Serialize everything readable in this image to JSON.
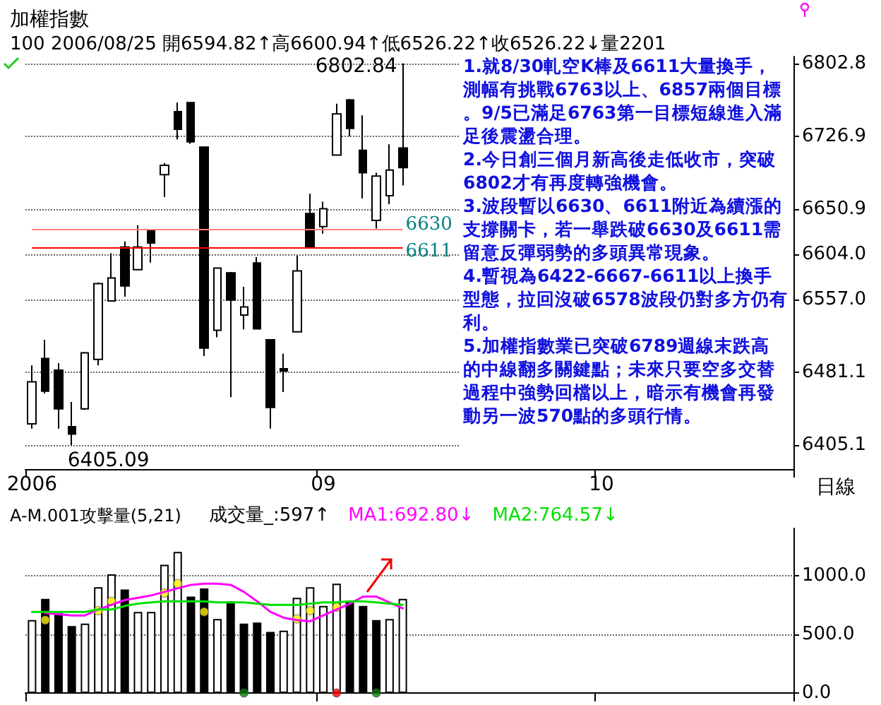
{
  "chart_data": [
    {
      "type": "candlestick",
      "title": "加權指數",
      "subtitle": "100 2006/08/25 開6594.82↑高6600.94↑低6526.22↑收6526.22↓量2201",
      "xlabel": "日線",
      "categories": [
        "2006",
        null,
        null,
        null,
        null,
        null,
        null,
        null,
        null,
        null,
        null,
        null,
        null,
        null,
        null,
        null,
        null,
        null,
        null,
        null,
        null,
        null,
        "09",
        null,
        null,
        null,
        null,
        null,
        null,
        null,
        null,
        null,
        null,
        null,
        null,
        null,
        null,
        null,
        null,
        null,
        null,
        null,
        null,
        "10",
        null,
        null,
        null,
        null,
        null,
        null,
        null,
        null,
        null,
        null,
        null,
        null,
        null,
        null
      ],
      "ohlc": [
        [
          6427.1,
          6488.0,
          6422.2,
          6471.0
        ],
        [
          6495.3,
          6514.8,
          6458.8,
          6461.2
        ],
        [
          6483.1,
          6490.5,
          6422.2,
          6442.7
        ],
        [
          6424.2,
          6450.0,
          6405.09,
          6416.4
        ],
        [
          6442.7,
          6502.0,
          6441.7,
          6501.2
        ],
        [
          6494.3,
          6574.3,
          6488.0,
          6573.3
        ],
        [
          6555.3,
          6605.0,
          6555.3,
          6579.1
        ],
        [
          6611.3,
          6617.2,
          6559.6,
          6570.9
        ],
        [
          6587.9,
          6634.2,
          6587.9,
          6611.3
        ],
        [
          6628.4,
          6628.4,
          6595.2,
          6615.7
        ],
        [
          6686.8,
          6699.0,
          6663.5,
          6696.6
        ],
        [
          6752.6,
          6761.9,
          6723.4,
          6734.1
        ],
        [
          6761.9,
          6761.9,
          6719.0,
          6721.0
        ],
        [
          6715.6,
          6715.6,
          6497.8,
          6506.0
        ],
        [
          6524.6,
          6589.4,
          6517.3,
          6589.4
        ],
        [
          6584.5,
          6585.5,
          6454.9,
          6556.2
        ],
        [
          6540.6,
          6569.9,
          6525.6,
          6548.9
        ],
        [
          6594.82,
          6600.94,
          6526.22,
          6526.22
        ],
        [
          6514.8,
          6514.8,
          6422.2,
          6444.2
        ],
        [
          6484.6,
          6500.2,
          6460.2,
          6482.2
        ],
        [
          6523.1,
          6602.5,
          6523.1,
          6586.5
        ],
        [
          6646.4,
          6666.9,
          6611.3,
          6611.3
        ],
        [
          6632.7,
          6658.6,
          6625.4,
          6651.3
        ],
        [
          6707.3,
          6760.9,
          6707.3,
          6750.2
        ],
        [
          6764.8,
          6765.8,
          6726.8,
          6735.1
        ],
        [
          6712.2,
          6748.7,
          6662.0,
          6688.8
        ],
        [
          6639.1,
          6688.8,
          6630.8,
          6685.4
        ],
        [
          6664.9,
          6718.5,
          6656.1,
          6691.7
        ],
        [
          6714.6,
          6802.84,
          6675.6,
          6694.2
        ],
        null,
        null,
        null,
        null,
        null,
        null,
        null,
        null,
        null,
        null,
        null,
        null,
        null,
        null,
        null,
        null,
        null,
        null,
        null,
        null,
        null,
        null,
        null,
        null,
        null,
        null,
        null,
        null,
        null
      ],
      "ylim": [
        6380,
        6810
      ],
      "yticks": [
        6802.8,
        6726.9,
        6650.9,
        {
          "value": 6604,
          "label": "6604.0"
        },
        {
          "value": 6557,
          "label": "6557.0"
        },
        6481.1,
        6405.1
      ],
      "grid": "y",
      "ref_lines": [
        {
          "axis": "y",
          "value": 6611,
          "label": "6611",
          "color": "#ff0000"
        },
        {
          "axis": "y",
          "value": 6630,
          "label": "6630",
          "color": "#ff8080"
        }
      ],
      "annotations": [
        "6405.09",
        "6802.84",
        "1.就8/30軋空K棒及6611大量換手，測幅有挑戰6763以上、6857兩個目標。9/5已滿足6763第一目標短線進入滿足後震盪合理。",
        "2.今日創三個月新高後走低收市，突破6802才有再度轉強機會。",
        "3.波段暫以6630、6611附近為續漲的支撐關卡，若一舉跌破6630及6611需留意反彈弱勢的多頭異常現象。",
        "4.暫視為6422-6667-6611以上換手型態，拉回沒破6578波段仍對多方仍有利。",
        "5.加權指數業已突破6789週線末跌高的中線翻多關鍵點；未來只要空多交替過程中強勢回檔以上，暗示有機會再發動另一波570點的多頭行情。"
      ]
    },
    {
      "type": "bar",
      "title": "A-M.001攻擊量(5,21)",
      "categories": [
        "2006",
        null,
        null,
        null,
        null,
        null,
        null,
        null,
        null,
        null,
        null,
        null,
        null,
        null,
        null,
        null,
        null,
        null,
        null,
        null,
        null,
        null,
        "09",
        null,
        null,
        null,
        null,
        null,
        null,
        null,
        null,
        null,
        null,
        null,
        null,
        null,
        null,
        null,
        null,
        null,
        null,
        null,
        null,
        "10",
        null,
        null,
        null,
        null,
        null,
        null,
        null,
        null,
        null,
        null,
        null,
        null,
        null,
        null
      ],
      "tick_labels": "y",
      "ylim": [
        0,
        1400
      ],
      "yticks": [
        {
          "value": 0,
          "label": "0.0"
        },
        {
          "value": 500,
          "label": "500.0"
        },
        {
          "value": 1000,
          "label": "1000.0"
        }
      ],
      "grid": "y",
      "legend": "top left",
      "marker": "none",
      "series": [
        {
          "name": "成交量_:597↑",
          "colors": [
            "#ffffff",
            "#000000",
            "#000000",
            "#000000",
            "#ffffff",
            "#ffffff",
            "#ffffff",
            "#000000",
            "#ffffff",
            "#ffffff",
            "#ffffff",
            "#ffffff",
            "#000000",
            "#000000",
            "#ffffff",
            "#000000",
            "#000000",
            "#000000",
            "#000000",
            "#ffffff",
            "#ffffff",
            "#ffffff",
            "#ffffff",
            "#ffffff",
            "#000000",
            "#000000",
            "#000000",
            "#ffffff",
            "#ffffff",
            null,
            null,
            null,
            null,
            null,
            null,
            null,
            null,
            null,
            null,
            null,
            null,
            null,
            null,
            null,
            null,
            null,
            null,
            null,
            null,
            null,
            null,
            null,
            null,
            null,
            null,
            null,
            null,
            null
          ],
          "values": [
            620,
            800,
            680,
            570,
            590,
            900,
            1010,
            880,
            690,
            690,
            1090,
            1200,
            820,
            890,
            630,
            780,
            590,
            600,
            520,
            530,
            810,
            900,
            740,
            930,
            780,
            740,
            620,
            630,
            800,
            null,
            null,
            null,
            null,
            null,
            null,
            null,
            null,
            null,
            null,
            null,
            null,
            null,
            null,
            null,
            null,
            null,
            null,
            null,
            null,
            null,
            null,
            null,
            null,
            null,
            null,
            null,
            null,
            null
          ]
        },
        {
          "type": "line",
          "name": "MA1:692.80↓",
          "color": "#ff00ff",
          "values": [
            null,
            680,
            670,
            660,
            660,
            710,
            750,
            790,
            810,
            830,
            860,
            890,
            920,
            930,
            930,
            920,
            860,
            780,
            690,
            640,
            620,
            610,
            660,
            710,
            760,
            820,
            820,
            770,
            720,
            null,
            null,
            null,
            null,
            null,
            null,
            null,
            null,
            null,
            null,
            null,
            null,
            null,
            null,
            null,
            null,
            null,
            null,
            null,
            null,
            null,
            null,
            null,
            null,
            null,
            null,
            null,
            null,
            null
          ]
        },
        {
          "type": "line",
          "name": "MA2:764.57↓",
          "color": "#00e000",
          "values": [
            690,
            690,
            690,
            690,
            690,
            710,
            710,
            740,
            760,
            770,
            780,
            780,
            780,
            780,
            770,
            770,
            770,
            760,
            750,
            750,
            750,
            760,
            770,
            770,
            780,
            780,
            770,
            760,
            750,
            null,
            null,
            null,
            null,
            null,
            null,
            null,
            null,
            null,
            null,
            null,
            null,
            null,
            null,
            null,
            null,
            null,
            null,
            null,
            null,
            null,
            null,
            null,
            null,
            null,
            null,
            null,
            null,
            null
          ]
        },
        {
          "type": "scatter",
          "marker": "circle",
          "color": "#ffee00",
          "values": [
            null,
            620,
            null,
            null,
            null,
            700,
            780,
            null,
            null,
            null,
            850,
            930,
            null,
            690,
            null,
            null,
            null,
            null,
            null,
            null,
            630,
            700,
            null,
            730,
            null,
            null,
            null,
            null,
            null,
            null,
            null,
            null,
            null,
            null,
            null,
            null,
            null,
            null,
            null,
            null,
            null,
            null,
            null,
            null,
            null,
            null,
            null,
            null,
            null,
            null,
            null,
            null,
            null,
            null,
            null,
            null,
            null,
            null
          ]
        },
        {
          "type": "scatter",
          "marker": "circle",
          "colors": [
            null,
            null,
            null,
            null,
            null,
            null,
            null,
            null,
            null,
            null,
            null,
            null,
            null,
            null,
            null,
            null,
            "#008000",
            null,
            null,
            null,
            null,
            null,
            null,
            "#ff0000",
            null,
            null,
            "#008000",
            null,
            null,
            null,
            null,
            null,
            null,
            null,
            null,
            null,
            null,
            null,
            null,
            null,
            null,
            null,
            null,
            null,
            null,
            null,
            null,
            null,
            null,
            null,
            null,
            null,
            null,
            null,
            null,
            null,
            null,
            null
          ],
          "values": [
            null,
            null,
            null,
            null,
            null,
            null,
            null,
            null,
            null,
            null,
            null,
            null,
            null,
            null,
            null,
            null,
            0,
            null,
            null,
            null,
            null,
            null,
            null,
            0,
            null,
            null,
            0,
            null,
            null,
            null,
            null,
            null,
            null,
            null,
            null,
            null,
            null,
            null,
            null,
            null,
            null,
            null,
            null,
            null,
            null,
            null,
            null,
            null,
            null,
            null,
            null,
            null,
            null,
            null,
            null,
            null,
            null,
            null
          ]
        }
      ]
    }
  ]
}
